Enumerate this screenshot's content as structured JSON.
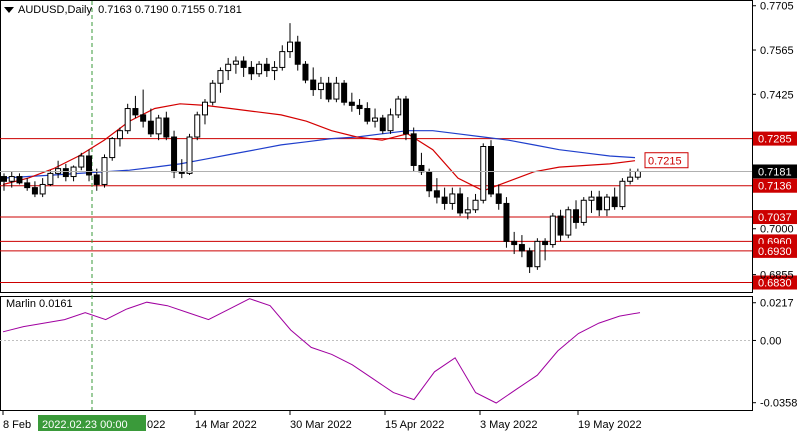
{
  "header": {
    "symbol": "AUDUSD,Daily",
    "open": "0.7163",
    "high": "0.7190",
    "low": "0.7155",
    "close": "0.7181"
  },
  "indicator": {
    "name": "Marlin",
    "value": "0.0161"
  },
  "price_axis": {
    "ticks": [
      "0.7705",
      "0.7565",
      "0.7425",
      "0.7000",
      "0.6855"
    ],
    "current_price": "0.7181"
  },
  "indicator_axis": {
    "ticks": [
      "0.0217",
      "0.00",
      "-0.0358"
    ]
  },
  "levels": [
    {
      "label": "0.7285",
      "color": "#cc0000"
    },
    {
      "label": "0.7136",
      "color": "#cc0000"
    },
    {
      "label": "0.7037",
      "color": "#cc0000"
    },
    {
      "label": "0.6960",
      "color": "#cc0000"
    },
    {
      "label": "0.6930",
      "color": "#cc0000"
    },
    {
      "label": "0.6830",
      "color": "#cc0000"
    }
  ],
  "ma_label": {
    "label": "0.7215",
    "color": "#cc0000"
  },
  "time_axis": {
    "labels": [
      "8 Feb",
      "14 Mar 2022",
      "30 Mar 2022",
      "15 Apr 2022",
      "3 May 2022",
      "19 May 2022"
    ],
    "cursor_label": "2022.02.23 00:00",
    "cursor_tail": "022"
  },
  "colors": {
    "bull": "#ffffff",
    "bear": "#000000",
    "ma_slow": "#1f3fcc",
    "ma_fast": "#d40000",
    "oscillator": "#a000a0",
    "level": "#cc0000",
    "cursor": "#3a9a3a",
    "cursor_label_bg": "#3a9a3a"
  },
  "chart_data": {
    "type": "candlestick",
    "candles": [
      [
        0.7165,
        0.7175,
        0.712,
        0.715
      ],
      [
        0.715,
        0.718,
        0.713,
        0.7165
      ],
      [
        0.7165,
        0.7175,
        0.714,
        0.7145
      ],
      [
        0.7145,
        0.716,
        0.712,
        0.713
      ],
      [
        0.713,
        0.715,
        0.71,
        0.711
      ],
      [
        0.711,
        0.716,
        0.71,
        0.714
      ],
      [
        0.714,
        0.7185,
        0.7135,
        0.7175
      ],
      [
        0.7175,
        0.7215,
        0.716,
        0.719
      ],
      [
        0.719,
        0.7205,
        0.715,
        0.7165
      ],
      [
        0.7165,
        0.72,
        0.715,
        0.7195
      ],
      [
        0.7195,
        0.724,
        0.7185,
        0.723
      ],
      [
        0.723,
        0.725,
        0.715,
        0.717
      ],
      [
        0.717,
        0.719,
        0.712,
        0.714
      ],
      [
        0.714,
        0.7235,
        0.713,
        0.7225
      ],
      [
        0.7225,
        0.729,
        0.7215,
        0.7285
      ],
      [
        0.7285,
        0.732,
        0.726,
        0.731
      ],
      [
        0.731,
        0.7395,
        0.73,
        0.738
      ],
      [
        0.738,
        0.742,
        0.735,
        0.736
      ],
      [
        0.736,
        0.744,
        0.732,
        0.734
      ],
      [
        0.734,
        0.738,
        0.729,
        0.73
      ],
      [
        0.73,
        0.736,
        0.728,
        0.735
      ],
      [
        0.735,
        0.737,
        0.728,
        0.729
      ],
      [
        0.729,
        0.731,
        0.716,
        0.718
      ],
      [
        0.718,
        0.722,
        0.716,
        0.7175
      ],
      [
        0.7175,
        0.73,
        0.717,
        0.729
      ],
      [
        0.729,
        0.737,
        0.728,
        0.736
      ],
      [
        0.736,
        0.741,
        0.733,
        0.74
      ],
      [
        0.74,
        0.747,
        0.739,
        0.746
      ],
      [
        0.746,
        0.751,
        0.743,
        0.75
      ],
      [
        0.75,
        0.754,
        0.747,
        0.752
      ],
      [
        0.752,
        0.7545,
        0.749,
        0.753
      ],
      [
        0.753,
        0.7545,
        0.748,
        0.751
      ],
      [
        0.751,
        0.753,
        0.747,
        0.749
      ],
      [
        0.749,
        0.753,
        0.748,
        0.752
      ],
      [
        0.752,
        0.754,
        0.748,
        0.75
      ],
      [
        0.75,
        0.753,
        0.747,
        0.751
      ],
      [
        0.751,
        0.758,
        0.75,
        0.756
      ],
      [
        0.756,
        0.765,
        0.754,
        0.759
      ],
      [
        0.759,
        0.761,
        0.75,
        0.752
      ],
      [
        0.752,
        0.753,
        0.746,
        0.747
      ],
      [
        0.747,
        0.751,
        0.742,
        0.744
      ],
      [
        0.744,
        0.748,
        0.741,
        0.746
      ],
      [
        0.746,
        0.748,
        0.74,
        0.741
      ],
      [
        0.741,
        0.748,
        0.74,
        0.746
      ],
      [
        0.746,
        0.747,
        0.739,
        0.74
      ],
      [
        0.74,
        0.743,
        0.737,
        0.739
      ],
      [
        0.739,
        0.741,
        0.736,
        0.738
      ],
      [
        0.738,
        0.74,
        0.733,
        0.734
      ],
      [
        0.734,
        0.738,
        0.732,
        0.735
      ],
      [
        0.735,
        0.736,
        0.73,
        0.731
      ],
      [
        0.731,
        0.738,
        0.73,
        0.736
      ],
      [
        0.736,
        0.742,
        0.735,
        0.741
      ],
      [
        0.741,
        0.742,
        0.728,
        0.73
      ],
      [
        0.73,
        0.732,
        0.718,
        0.72
      ],
      [
        0.72,
        0.724,
        0.717,
        0.718
      ],
      [
        0.718,
        0.719,
        0.71,
        0.712
      ],
      [
        0.712,
        0.716,
        0.708,
        0.71
      ],
      [
        0.71,
        0.713,
        0.706,
        0.708
      ],
      [
        0.708,
        0.713,
        0.706,
        0.711
      ],
      [
        0.711,
        0.713,
        0.704,
        0.705
      ],
      [
        0.705,
        0.71,
        0.703,
        0.706
      ],
      [
        0.706,
        0.711,
        0.705,
        0.709
      ],
      [
        0.709,
        0.727,
        0.708,
        0.726
      ],
      [
        0.726,
        0.728,
        0.71,
        0.711
      ],
      [
        0.711,
        0.714,
        0.706,
        0.708
      ],
      [
        0.708,
        0.71,
        0.694,
        0.696
      ],
      [
        0.696,
        0.699,
        0.692,
        0.695
      ],
      [
        0.695,
        0.698,
        0.691,
        0.693
      ],
      [
        0.693,
        0.694,
        0.686,
        0.688
      ],
      [
        0.688,
        0.697,
        0.687,
        0.696
      ],
      [
        0.696,
        0.697,
        0.69,
        0.695
      ],
      [
        0.695,
        0.705,
        0.694,
        0.704
      ],
      [
        0.704,
        0.706,
        0.696,
        0.698
      ],
      [
        0.698,
        0.707,
        0.697,
        0.706
      ],
      [
        0.706,
        0.709,
        0.7,
        0.702
      ],
      [
        0.702,
        0.71,
        0.701,
        0.709
      ],
      [
        0.709,
        0.712,
        0.705,
        0.71
      ],
      [
        0.71,
        0.712,
        0.704,
        0.706
      ],
      [
        0.706,
        0.711,
        0.704,
        0.71
      ],
      [
        0.71,
        0.713,
        0.706,
        0.707
      ],
      [
        0.707,
        0.716,
        0.706,
        0.715
      ],
      [
        0.715,
        0.719,
        0.714,
        0.7163
      ],
      [
        0.7163,
        0.719,
        0.7155,
        0.7181
      ]
    ],
    "ma_slow": [
      0.716,
      0.7165,
      0.717,
      0.7175,
      0.718,
      0.7185,
      0.7195,
      0.7205,
      0.722,
      0.7235,
      0.725,
      0.7265,
      0.7275,
      0.7285,
      0.729,
      0.73,
      0.731,
      0.731,
      0.73,
      0.729,
      0.728,
      0.7265,
      0.725,
      0.724,
      0.723,
      0.7225
    ],
    "ma_fast": [
      0.714,
      0.716,
      0.719,
      0.723,
      0.728,
      0.734,
      0.738,
      0.7395,
      0.739,
      0.738,
      0.737,
      0.736,
      0.734,
      0.731,
      0.729,
      0.728,
      0.73,
      0.725,
      0.716,
      0.712,
      0.715,
      0.718,
      0.7195,
      0.72,
      0.7205,
      0.7215
    ],
    "oscillator": [
      0.005,
      0.008,
      0.01,
      0.012,
      0.016,
      0.012,
      0.018,
      0.022,
      0.02,
      0.016,
      0.012,
      0.018,
      0.024,
      0.02,
      0.006,
      -0.004,
      -0.008,
      -0.014,
      -0.022,
      -0.03,
      -0.034,
      -0.018,
      -0.01,
      -0.03,
      -0.036,
      -0.028,
      -0.02,
      -0.006,
      0.004,
      0.01,
      0.014,
      0.016
    ],
    "ylim": [
      0.68,
      0.772
    ],
    "indicator_ylim": [
      -0.04,
      0.025
    ]
  }
}
